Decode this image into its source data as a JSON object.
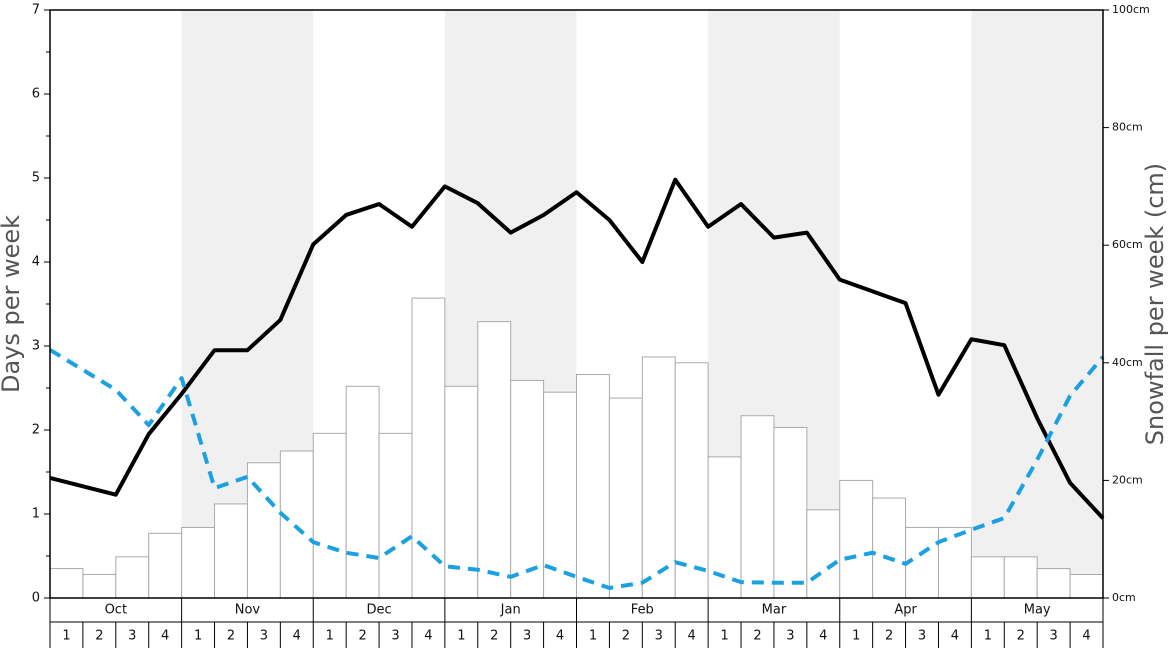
{
  "chart_data": {
    "type": "bar",
    "ylabel": "Days per week",
    "y2label": "Snowfall per week (cm)",
    "months": [
      "Oct",
      "Nov",
      "Dec",
      "Jan",
      "Feb",
      "Mar",
      "Apr",
      "May"
    ],
    "month_shaded": [
      false,
      true,
      false,
      true,
      false,
      true,
      false,
      true
    ],
    "week_labels": [
      "1",
      "2",
      "3",
      "4"
    ],
    "xlim": [
      0,
      32
    ],
    "ylim": [
      0,
      7
    ],
    "yticks": [
      0,
      1,
      2,
      3,
      4,
      5,
      6,
      7
    ],
    "y2lim": [
      0,
      100
    ],
    "y2ticks": [
      {
        "value": 0,
        "label": "0cm"
      },
      {
        "value": 20,
        "label": "20cm"
      },
      {
        "value": 40,
        "label": "40cm"
      },
      {
        "value": 60,
        "label": "60cm"
      },
      {
        "value": 80,
        "label": "80cm"
      },
      {
        "value": 100,
        "label": "100cm"
      }
    ],
    "bar_series": {
      "axis": "y2",
      "color": "#ffffff",
      "edge_color": "#aaaaaa",
      "values": [
        5,
        4,
        7,
        11,
        12,
        16,
        23,
        25,
        28,
        36,
        28,
        51,
        36,
        47,
        37,
        35,
        38,
        34,
        41,
        40,
        24,
        31,
        29,
        15,
        20,
        17,
        12,
        12,
        7,
        7,
        5,
        4
      ]
    },
    "series": [
      {
        "color": "#000000",
        "dashed": false,
        "x": [
          0,
          1,
          2,
          3,
          4,
          5,
          6,
          7,
          8,
          9,
          10,
          11,
          12,
          13,
          14,
          15,
          16,
          17,
          18,
          19,
          20,
          21,
          22,
          23,
          24,
          25,
          26,
          27,
          28,
          29,
          30,
          31,
          32
        ],
        "values": [
          1.43,
          1.33,
          1.23,
          1.95,
          2.43,
          2.95,
          2.95,
          3.31,
          4.21,
          4.56,
          4.69,
          4.42,
          4.9,
          4.7,
          4.35,
          4.56,
          4.83,
          4.5,
          4.0,
          4.98,
          4.42,
          4.69,
          4.29,
          4.35,
          3.79,
          3.65,
          3.51,
          2.42,
          3.08,
          3.01,
          2.14,
          1.37,
          0.95
        ]
      },
      {
        "color": "#1ba1e2",
        "dashed": true,
        "axis": "y2",
        "x": [
          0,
          1,
          2,
          3,
          4,
          5,
          6,
          7,
          8,
          9,
          10,
          11,
          12,
          13,
          14,
          15,
          16,
          17,
          18,
          19,
          20,
          21,
          22,
          23,
          24,
          25,
          26,
          27,
          28,
          29,
          30,
          31,
          32
        ],
        "values": [
          42.2,
          38.8,
          35.4,
          29.4,
          37.4,
          18.7,
          20.6,
          14.5,
          9.5,
          7.7,
          6.8,
          10.5,
          5.4,
          4.8,
          3.6,
          5.6,
          3.6,
          1.7,
          2.6,
          6.1,
          4.6,
          2.7,
          2.6,
          2.6,
          6.5,
          7.7,
          5.8,
          9.5,
          11.6,
          13.6,
          23.5,
          34.4,
          41.0
        ]
      }
    ]
  }
}
